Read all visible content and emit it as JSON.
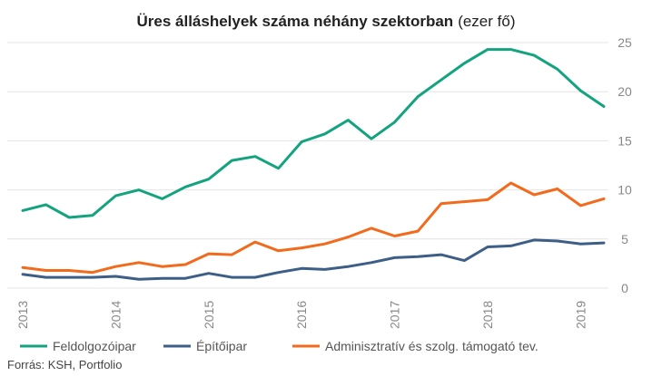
{
  "chart_data": {
    "type": "line",
    "title": "Üres álláshelyek száma néhány szektorban",
    "title_unit": "(ezer fő)",
    "source": "Forrás: KSH, Portfolio",
    "ylim": [
      0,
      25
    ],
    "y_ticks": [
      "0",
      "5",
      "10",
      "15",
      "20",
      "25"
    ],
    "y_axis_side": "right",
    "x_tick_labels": [
      "2013",
      "2014",
      "2015",
      "2016",
      "2017",
      "2018",
      "2019"
    ],
    "x_tick_orientation": "vertical",
    "grid": "horizontal",
    "legend_position": "bottom",
    "x": [
      "2013Q1",
      "2013Q2",
      "2013Q3",
      "2013Q4",
      "2014Q1",
      "2014Q2",
      "2014Q3",
      "2014Q4",
      "2015Q1",
      "2015Q2",
      "2015Q3",
      "2015Q4",
      "2016Q1",
      "2016Q2",
      "2016Q3",
      "2016Q4",
      "2017Q1",
      "2017Q2",
      "2017Q3",
      "2017Q4",
      "2018Q1",
      "2018Q2",
      "2018Q3",
      "2018Q4",
      "2019Q1",
      "2019Q2"
    ],
    "series": [
      {
        "name": "Feldolgozóipar",
        "color": "#14a37f",
        "values": [
          7.9,
          8.5,
          7.2,
          7.4,
          9.4,
          10.0,
          9.1,
          10.3,
          11.1,
          13.0,
          13.4,
          12.2,
          14.9,
          15.7,
          17.1,
          15.2,
          16.9,
          19.5,
          21.2,
          22.9,
          24.3,
          24.3,
          23.7,
          22.3,
          20.1,
          18.5
        ]
      },
      {
        "name": "Építőipar",
        "color": "#3d5f87",
        "values": [
          1.4,
          1.1,
          1.1,
          1.1,
          1.2,
          0.9,
          1.0,
          1.0,
          1.5,
          1.1,
          1.1,
          1.6,
          2.0,
          1.9,
          2.2,
          2.6,
          3.1,
          3.2,
          3.4,
          2.8,
          4.2,
          4.3,
          4.9,
          4.8,
          4.5,
          4.6
        ]
      },
      {
        "name": "Adminisztratív és szolg. támogató tev.",
        "color": "#f26a1b",
        "values": [
          2.1,
          1.8,
          1.8,
          1.6,
          2.2,
          2.6,
          2.2,
          2.4,
          3.5,
          3.4,
          4.7,
          3.8,
          4.1,
          4.5,
          5.2,
          6.1,
          5.3,
          5.8,
          8.6,
          8.8,
          9.0,
          10.7,
          9.5,
          10.1,
          8.4,
          9.1
        ]
      }
    ]
  }
}
